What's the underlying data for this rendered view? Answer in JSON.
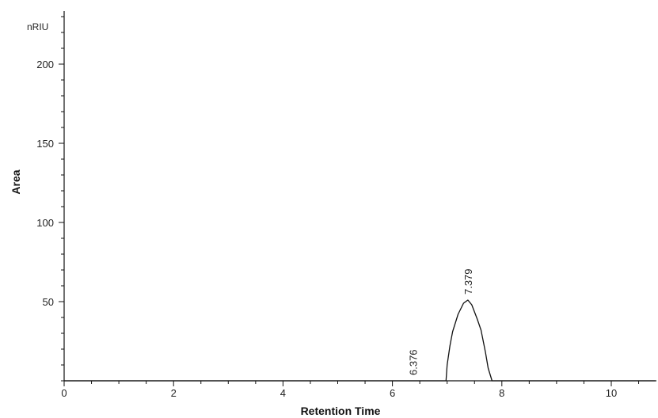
{
  "chart_data": {
    "type": "line",
    "title": "",
    "xlabel": "Retention Time",
    "ylabel": "Area",
    "y_unit": "nRIU",
    "xlim": [
      0,
      10.8
    ],
    "ylim": [
      0,
      232
    ],
    "x_ticks": [
      0,
      2,
      4,
      6,
      8,
      10
    ],
    "y_ticks": [
      50,
      100,
      150,
      200
    ],
    "grid": false,
    "series": [
      {
        "x": [
          0,
          6.98,
          7.0,
          7.05,
          7.1,
          7.2,
          7.3,
          7.379,
          7.45,
          7.55,
          7.62,
          7.7,
          7.75,
          7.82,
          7.84,
          10.8
        ],
        "y": [
          0,
          0,
          10,
          22,
          31,
          42,
          49,
          51,
          48,
          39,
          32,
          18,
          8,
          0,
          0,
          0
        ]
      }
    ],
    "annotations": [
      {
        "text": "7.379",
        "x": 7.379,
        "y": 51
      },
      {
        "text": "6.376",
        "x": 6.376,
        "y": 0
      }
    ]
  }
}
